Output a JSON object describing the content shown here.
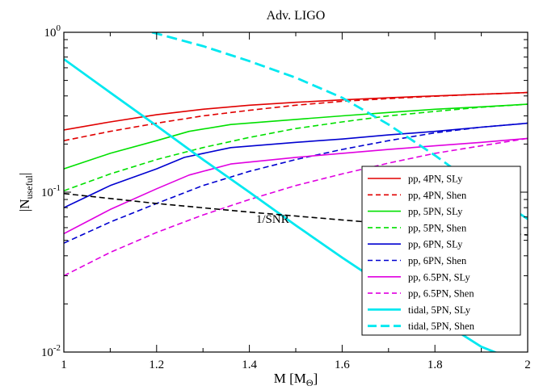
{
  "chart_data": {
    "type": "line",
    "title": "Adv. LIGO",
    "xlabel": {
      "main": "M [M",
      "sub": "Θ",
      "close": "]"
    },
    "ylabel": {
      "main": "|N",
      "sub": "useful",
      "close": "|"
    },
    "xlim": [
      1,
      2
    ],
    "ylim": [
      0.01,
      1
    ],
    "yscale": "log",
    "grid": false,
    "legend_position": "lower-right",
    "x_ticks": [
      {
        "value": 1,
        "label": "1"
      },
      {
        "value": 1.2,
        "label": "1.2"
      },
      {
        "value": 1.4,
        "label": "1.4"
      },
      {
        "value": 1.6,
        "label": "1.6"
      },
      {
        "value": 1.8,
        "label": "1.8"
      },
      {
        "value": 2,
        "label": "2"
      }
    ],
    "y_ticks": [
      {
        "value": 0.01,
        "base": "10",
        "exp": "-2"
      },
      {
        "value": 0.1,
        "base": "10",
        "exp": "-1"
      },
      {
        "value": 1,
        "base": "10",
        "exp": "0"
      }
    ],
    "annotations": [
      {
        "text": "1/SNR",
        "x": 1.45,
        "y": 0.068
      }
    ],
    "series": [
      {
        "name": "pp, 4PN, SLy",
        "color": "#e00000",
        "dash": "solid",
        "x": [
          1,
          1.1,
          1.2,
          1.3,
          1.4,
          1.5,
          1.6,
          1.7,
          1.8,
          1.9,
          2
        ],
        "y": [
          0.245,
          0.275,
          0.305,
          0.33,
          0.35,
          0.365,
          0.378,
          0.39,
          0.4,
          0.41,
          0.42
        ]
      },
      {
        "name": "pp, 4PN, Shen",
        "color": "#e00000",
        "dash": "dashed",
        "x": [
          1,
          1.1,
          1.2,
          1.3,
          1.4,
          1.5,
          1.6,
          1.7,
          1.8,
          1.9,
          2
        ],
        "y": [
          0.21,
          0.24,
          0.27,
          0.3,
          0.325,
          0.35,
          0.37,
          0.385,
          0.398,
          0.41,
          0.42
        ]
      },
      {
        "name": "pp, 5PN, SLy",
        "color": "#00e000",
        "dash": "solid",
        "x": [
          1,
          1.1,
          1.2,
          1.27,
          1.36,
          1.5,
          1.6,
          1.7,
          1.8,
          1.9,
          2
        ],
        "y": [
          0.14,
          0.175,
          0.21,
          0.24,
          0.265,
          0.285,
          0.3,
          0.315,
          0.33,
          0.342,
          0.355
        ]
      },
      {
        "name": "pp, 5PN, Shen",
        "color": "#00e000",
        "dash": "dashed",
        "x": [
          1,
          1.1,
          1.2,
          1.3,
          1.4,
          1.5,
          1.6,
          1.7,
          1.8,
          1.9,
          2
        ],
        "y": [
          0.102,
          0.13,
          0.16,
          0.19,
          0.22,
          0.25,
          0.275,
          0.3,
          0.32,
          0.34,
          0.355
        ]
      },
      {
        "name": "pp, 6PN, SLy",
        "color": "#0000d0",
        "dash": "solid",
        "x": [
          1,
          1.1,
          1.2,
          1.26,
          1.36,
          1.5,
          1.6,
          1.7,
          1.8,
          1.9,
          2
        ],
        "y": [
          0.08,
          0.11,
          0.14,
          0.165,
          0.19,
          0.205,
          0.215,
          0.228,
          0.24,
          0.255,
          0.27
        ]
      },
      {
        "name": "pp, 6PN, Shen",
        "color": "#0000d0",
        "dash": "dashed",
        "x": [
          1,
          1.1,
          1.2,
          1.3,
          1.4,
          1.5,
          1.6,
          1.7,
          1.8,
          1.9,
          2
        ],
        "y": [
          0.048,
          0.065,
          0.085,
          0.11,
          0.135,
          0.16,
          0.185,
          0.21,
          0.235,
          0.255,
          0.27
        ]
      },
      {
        "name": "pp, 6.5PN, SLy",
        "color": "#e000e0",
        "dash": "solid",
        "x": [
          1,
          1.1,
          1.2,
          1.27,
          1.36,
          1.5,
          1.6,
          1.7,
          1.8,
          1.9,
          2
        ],
        "y": [
          0.055,
          0.078,
          0.105,
          0.128,
          0.15,
          0.165,
          0.175,
          0.185,
          0.195,
          0.205,
          0.217
        ]
      },
      {
        "name": "pp, 6.5PN, Shen",
        "color": "#e000e0",
        "dash": "dashed",
        "x": [
          1,
          1.1,
          1.2,
          1.3,
          1.4,
          1.5,
          1.6,
          1.7,
          1.8,
          1.9,
          2
        ],
        "y": [
          0.03,
          0.042,
          0.056,
          0.072,
          0.09,
          0.11,
          0.13,
          0.152,
          0.175,
          0.195,
          0.217
        ]
      },
      {
        "name": "tidal, 5PN, SLy",
        "color": "#00e8f0",
        "dash": "solid",
        "x": [
          1,
          1.1,
          1.2,
          1.3,
          1.4,
          1.5,
          1.6,
          1.7,
          1.8,
          1.9,
          1.94
        ],
        "y": [
          0.68,
          0.42,
          0.26,
          0.16,
          0.1,
          0.062,
          0.039,
          0.025,
          0.0165,
          0.0108,
          0.0097
        ]
      },
      {
        "name": "tidal, 5PN, Shen",
        "color": "#00e8f0",
        "dash": "longdash",
        "x": [
          1.19,
          1.3,
          1.4,
          1.5,
          1.6,
          1.7,
          1.8,
          1.9,
          2
        ],
        "y": [
          1.0,
          0.82,
          0.66,
          0.52,
          0.39,
          0.265,
          0.17,
          0.105,
          0.068
        ]
      },
      {
        "name": "",
        "color": "#000000",
        "dash": "dashed",
        "x": [
          1,
          1.2,
          1.4,
          1.6,
          1.8,
          2
        ],
        "y": [
          0.098,
          0.085,
          0.075,
          0.067,
          0.06,
          0.054
        ]
      }
    ]
  }
}
